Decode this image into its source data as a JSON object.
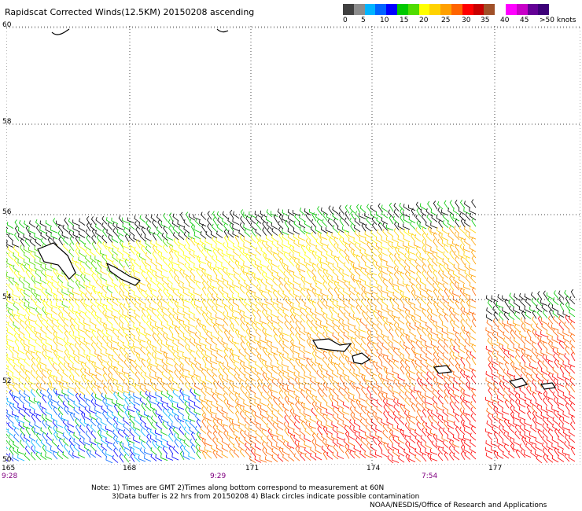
{
  "title": "Rapidscat Corrected Winds(12.5KM) 20150208 ascending",
  "legend": {
    "colors": [
      "#404040",
      "#8c8c8c",
      "#00b4ff",
      "#0064ff",
      "#0000ff",
      "#00c800",
      "#50dc00",
      "#ffff00",
      "#ffd200",
      "#ffa000",
      "#ff6400",
      "#ff0000",
      "#c80000",
      "#a05028",
      "#ffffff",
      "#ff00ff",
      "#c800c8",
      "#640096",
      "#3c0078"
    ],
    "labels": [
      "0",
      "5",
      "10",
      "15",
      "20",
      "25",
      "30",
      "35",
      "40",
      "45",
      ">50 knots"
    ]
  },
  "lat_labels": [
    "60",
    "58",
    "56",
    "54",
    "52",
    "50"
  ],
  "lon_labels": [
    "165",
    "168",
    "171",
    "174",
    "177"
  ],
  "time_labels": [
    "9:28",
    "9:29",
    "7:54"
  ],
  "notes": {
    "line1": "Note: 1) Times are GMT 2)Times along bottom correspond to measurement at 60N",
    "line2": "3)Data buffer is 22 hrs from 20150208 4) Black circles indicate possible contamination",
    "credit": "NOAA/NESDIS/Office of Research and Applications"
  }
}
